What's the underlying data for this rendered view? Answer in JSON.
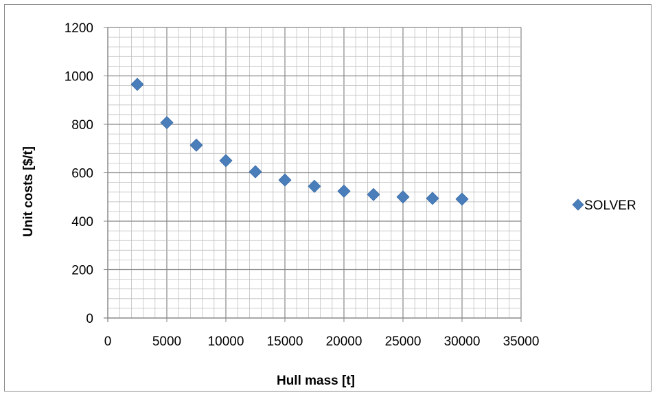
{
  "chart_data": {
    "type": "scatter",
    "xlabel": "Hull mass [t]",
    "ylabel": "Unit costs [$/t]",
    "xlim": [
      0,
      35000
    ],
    "ylim": [
      0,
      1200
    ],
    "x_ticks": [
      0,
      5000,
      10000,
      15000,
      20000,
      25000,
      30000,
      35000
    ],
    "y_ticks": [
      0,
      200,
      400,
      600,
      800,
      1000,
      1200
    ],
    "x_minor_step": 1000,
    "y_minor_step": 40,
    "grid": true,
    "legend_position": "right",
    "series": [
      {
        "name": "SOLVER",
        "color": "#4a7ebb",
        "marker": "diamond",
        "points": [
          {
            "x": 2500,
            "y": 965
          },
          {
            "x": 5000,
            "y": 807
          },
          {
            "x": 7500,
            "y": 714
          },
          {
            "x": 10000,
            "y": 650
          },
          {
            "x": 12500,
            "y": 604
          },
          {
            "x": 15000,
            "y": 570
          },
          {
            "x": 17500,
            "y": 544
          },
          {
            "x": 20000,
            "y": 524
          },
          {
            "x": 22500,
            "y": 510
          },
          {
            "x": 25000,
            "y": 500
          },
          {
            "x": 27500,
            "y": 494
          },
          {
            "x": 30000,
            "y": 491
          }
        ]
      }
    ]
  }
}
